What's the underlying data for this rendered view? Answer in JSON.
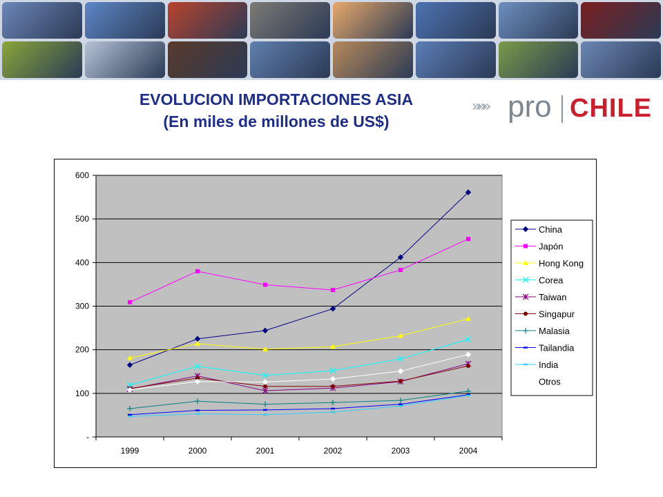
{
  "header": {
    "title_line1": "EVOLUCION IMPORTACIONES ASIA",
    "title_line2": "(En miles de millones de US$)"
  },
  "logo": {
    "arrows": "»»»",
    "pro": "pro",
    "chile": "CHILE"
  },
  "banner_tiles": [
    "#6c86b8",
    "#5d87c6",
    "#b8432e",
    "#7c7a74",
    "#e8a96a",
    "#4d73b1",
    "#6d8fbf",
    "#7a1f1f",
    "#8aa63a",
    "#b6c3d6",
    "#5a3a2a",
    "#5f7fae",
    "#b78a5a",
    "#5c7db6",
    "#7a9a48",
    "#6b86b4"
  ],
  "chart_data": {
    "type": "line",
    "title": "",
    "xlabel": "",
    "ylabel": "",
    "categories": [
      "1999",
      "2000",
      "2001",
      "2002",
      "2003",
      "2004"
    ],
    "ylim": [
      0,
      600
    ],
    "yticks": [
      0,
      100,
      200,
      300,
      400,
      500,
      600
    ],
    "ytick_labels": [
      "-",
      "100",
      "200",
      "300",
      "400",
      "500",
      "600"
    ],
    "plot_background": "#c0c0c0",
    "grid": true,
    "legend_position": "right",
    "series": [
      {
        "name": "China",
        "color": "#000080",
        "marker": "diamond",
        "values": [
          165,
          225,
          244,
          294,
          412,
          561
        ]
      },
      {
        "name": "Japón",
        "color": "#ff00ff",
        "marker": "square",
        "values": [
          309,
          380,
          349,
          337,
          383,
          454
        ]
      },
      {
        "name": "Hong Kong",
        "color": "#ffff00",
        "marker": "triangle",
        "values": [
          181,
          214,
          201,
          207,
          232,
          271
        ]
      },
      {
        "name": "Corea",
        "color": "#00ffff",
        "marker": "x",
        "values": [
          119,
          162,
          141,
          152,
          179,
          224
        ]
      },
      {
        "name": "Taiwan",
        "color": "#800080",
        "marker": "star",
        "values": [
          110,
          140,
          106,
          112,
          127,
          168
        ]
      },
      {
        "name": "Singapur",
        "color": "#800000",
        "marker": "circle",
        "values": [
          111,
          135,
          116,
          116,
          128,
          163
        ]
      },
      {
        "name": "Malasia",
        "color": "#008080",
        "marker": "plus",
        "values": [
          65,
          82,
          75,
          79,
          84,
          105
        ]
      },
      {
        "name": "Tailandia",
        "color": "#0000ff",
        "marker": "dash",
        "values": [
          51,
          61,
          62,
          65,
          75,
          97
        ]
      },
      {
        "name": "India",
        "color": "#33ccff",
        "marker": "dash",
        "values": [
          47,
          53,
          51,
          57,
          71,
          95
        ]
      },
      {
        "name": "Otros",
        "color": "#ffffff",
        "marker": "diamond",
        "values": [
          108,
          127,
          126,
          133,
          151,
          189
        ]
      }
    ]
  }
}
